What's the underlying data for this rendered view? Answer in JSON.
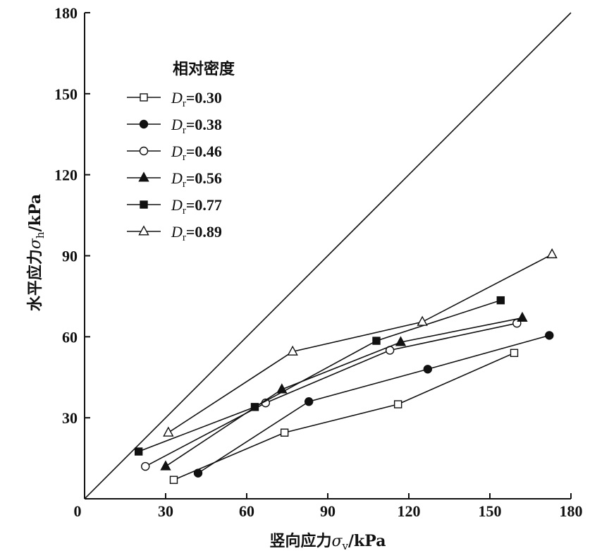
{
  "chart_data": {
    "type": "line",
    "xlabel": {
      "main": "竖向应力",
      "symbol": "σ",
      "sub": "v",
      "unit": "/kPa"
    },
    "ylabel": {
      "main": "水平应力",
      "symbol": "σ",
      "sub": "h",
      "unit": "/kPa"
    },
    "xlim": [
      0,
      180
    ],
    "ylim": [
      0,
      180
    ],
    "x_ticks": [
      0,
      30,
      60,
      90,
      120,
      150,
      180
    ],
    "y_ticks": [
      0,
      30,
      60,
      90,
      120,
      150,
      180
    ],
    "grid": false,
    "legend": {
      "title": "相对密度",
      "placement": "top-left"
    },
    "reference_line": {
      "from": [
        0,
        0
      ],
      "to": [
        180,
        180
      ]
    },
    "series": [
      {
        "name": "Dr=0.30",
        "symbol": "D",
        "sub": "r",
        "value": "=0.30",
        "marker": "square-open",
        "x": [
          33,
          74,
          116,
          159
        ],
        "y": [
          7,
          24.5,
          35,
          54
        ]
      },
      {
        "name": "Dr=0.38",
        "symbol": "D",
        "sub": "r",
        "value": "=0.38",
        "marker": "circle-filled",
        "x": [
          42,
          83,
          127,
          172
        ],
        "y": [
          9.5,
          36,
          48,
          60.5
        ]
      },
      {
        "name": "Dr=0.46",
        "symbol": "D",
        "sub": "r",
        "value": "=0.46",
        "marker": "circle-open",
        "x": [
          22.5,
          67,
          113,
          160
        ],
        "y": [
          12,
          35.5,
          55,
          65
        ]
      },
      {
        "name": "Dr=0.56",
        "symbol": "D",
        "sub": "r",
        "value": "=0.56",
        "marker": "triangle-filled",
        "x": [
          30,
          73,
          117,
          162
        ],
        "y": [
          12,
          40.5,
          58,
          67
        ]
      },
      {
        "name": "Dr=0.77",
        "symbol": "D",
        "sub": "r",
        "value": "=0.77",
        "marker": "square-filled",
        "x": [
          20,
          63,
          108,
          154
        ],
        "y": [
          17.5,
          34,
          58.5,
          73.5
        ]
      },
      {
        "name": "Dr=0.89",
        "symbol": "D",
        "sub": "r",
        "value": "=0.89",
        "marker": "triangle-open",
        "x": [
          31,
          77,
          125,
          173
        ],
        "y": [
          24.5,
          54.5,
          65.5,
          90.5
        ]
      }
    ]
  }
}
